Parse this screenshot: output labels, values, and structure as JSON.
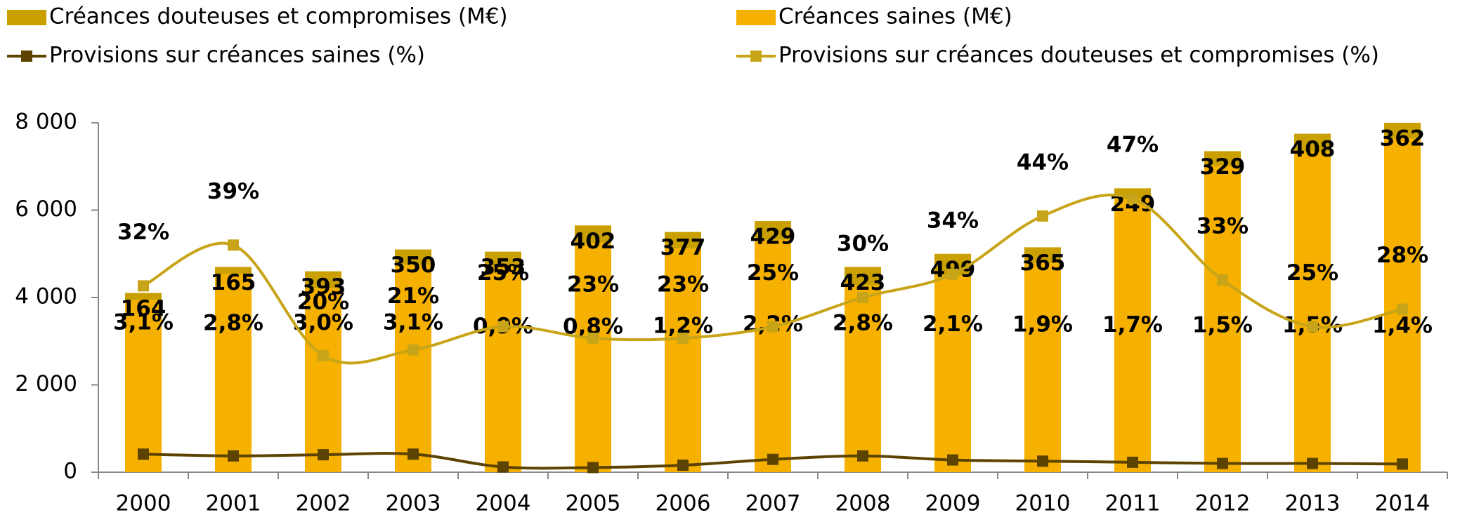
{
  "chart_data": {
    "type": "bar-line",
    "categories": [
      "2000",
      "2001",
      "2002",
      "2003",
      "2004",
      "2005",
      "2006",
      "2007",
      "2008",
      "2009",
      "2010",
      "2011",
      "2012",
      "2013",
      "2014"
    ],
    "series": [
      {
        "name": "Créances saines (M€)",
        "kind": "bar",
        "color": "#f5b000",
        "values": [
          3940,
          4535,
          4207,
          4750,
          4697,
          5248,
          5123,
          5321,
          4277,
          4501,
          4785,
          6251,
          7021,
          7342,
          7638
        ]
      },
      {
        "name": "Créances douteuses et compromises (M€)",
        "kind": "bar",
        "color": "#c9a000",
        "values": [
          164,
          165,
          393,
          350,
          353,
          402,
          377,
          429,
          423,
          499,
          365,
          249,
          329,
          408,
          362
        ]
      },
      {
        "name": "Provisions sur créances saines (%)",
        "kind": "line",
        "axis": "y2",
        "color": "#5c4400",
        "values": [
          3.1,
          2.8,
          3.0,
          3.1,
          0.9,
          0.8,
          1.2,
          2.2,
          2.8,
          2.1,
          1.9,
          1.7,
          1.5,
          1.5,
          1.4
        ],
        "value_labels": [
          "3,1%",
          "2,8%",
          "3,0%",
          "3,1%",
          "0,9%",
          "0,8%",
          "1,2%",
          "2,2%",
          "2,8%",
          "2,1%",
          "1,9%",
          "1,7%",
          "1,5%",
          "1,5%",
          "1,4%"
        ]
      },
      {
        "name": "Provisions sur créances douteuses et compromises (%)",
        "kind": "line",
        "axis": "y2",
        "color": "#c8a418",
        "values": [
          32,
          39,
          20,
          21,
          25,
          23,
          23,
          25,
          30,
          34,
          44,
          47,
          33,
          25,
          28
        ],
        "value_labels": [
          "32%",
          "39%",
          "20%",
          "21%",
          "25%",
          "23%",
          "23%",
          "25%",
          "30%",
          "34%",
          "44%",
          "47%",
          "33%",
          "25%",
          "28%"
        ]
      }
    ],
    "ylim": [
      0,
      8000
    ],
    "yticks": [
      0,
      {
        "value": 2000,
        "label": "2 000"
      },
      {
        "value": 4000,
        "label": "4 000"
      },
      {
        "value": 6000,
        "label": "6 000"
      },
      {
        "value": 8000,
        "label": "8 000"
      }
    ],
    "y2lim": [
      0,
      60
    ]
  }
}
